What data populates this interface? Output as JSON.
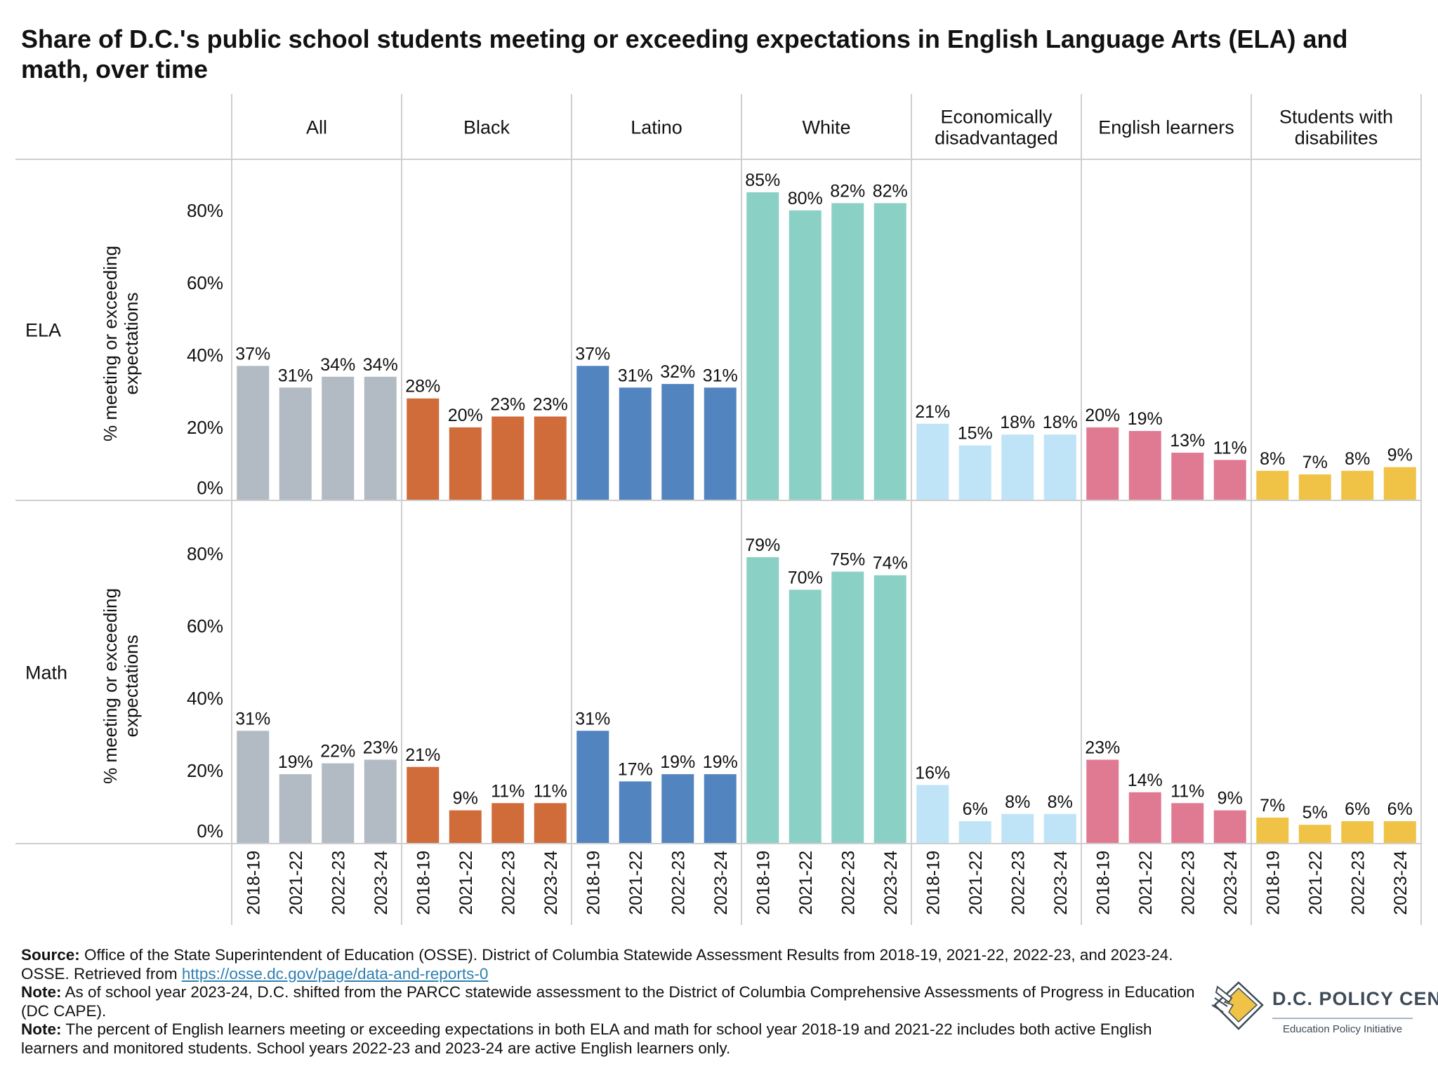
{
  "title": "Share of D.C.'s public school students meeting or exceeding expectations in English Language Arts (ELA) and math, over time",
  "chart_data": {
    "type": "bar",
    "layout": "small multiples: rows = subject, columns = student group",
    "groups": [
      "All",
      "Black",
      "Latino",
      "White",
      "Economically disadvantaged",
      "English learners",
      "Students with disabilites"
    ],
    "group_colors": [
      "#b2bac3",
      "#d06b3a",
      "#5285c0",
      "#8bd0c4",
      "#bfe3f7",
      "#e07a93",
      "#f0c346"
    ],
    "categories": [
      "2018-19",
      "2021-22",
      "2022-23",
      "2023-24"
    ],
    "ylabel": "% meeting or exceeding expectations",
    "ylim": [
      0,
      95
    ],
    "yticks": [
      0,
      20,
      40,
      60,
      80
    ],
    "ytick_labels": [
      "0%",
      "20%",
      "40%",
      "60%",
      "80%"
    ],
    "grid": false,
    "legend": "none",
    "panels": [
      {
        "subject": "ELA",
        "series": [
          {
            "name": "All",
            "values": [
              37,
              31,
              34,
              34
            ],
            "labels": [
              "37%",
              "31%",
              "34%",
              "34%"
            ]
          },
          {
            "name": "Black",
            "values": [
              28,
              20,
              23,
              23
            ],
            "labels": [
              "28%",
              "20%",
              "23%",
              "23%"
            ]
          },
          {
            "name": "Latino",
            "values": [
              37,
              31,
              32,
              31
            ],
            "labels": [
              "37%",
              "31%",
              "32%",
              "31%"
            ]
          },
          {
            "name": "White",
            "values": [
              85,
              80,
              82,
              82
            ],
            "labels": [
              "85%",
              "80%",
              "82%",
              "82%"
            ]
          },
          {
            "name": "Economically disadvantaged",
            "values": [
              21,
              15,
              18,
              18
            ],
            "labels": [
              "21%",
              "15%",
              "18%",
              "18%"
            ]
          },
          {
            "name": "English learners",
            "values": [
              20,
              19,
              13,
              11
            ],
            "labels": [
              "20%",
              "19%",
              "13%",
              "11%"
            ]
          },
          {
            "name": "Students with disabilites",
            "values": [
              8,
              7,
              8,
              9
            ],
            "labels": [
              "8%",
              "7%",
              "8%",
              "9%"
            ]
          }
        ]
      },
      {
        "subject": "Math",
        "series": [
          {
            "name": "All",
            "values": [
              31,
              19,
              22,
              23
            ],
            "labels": [
              "31%",
              "19%",
              "22%",
              "23%"
            ]
          },
          {
            "name": "Black",
            "values": [
              21,
              9,
              11,
              11
            ],
            "labels": [
              "21%",
              "9%",
              "11%",
              "11%"
            ]
          },
          {
            "name": "Latino",
            "values": [
              31,
              17,
              19,
              19
            ],
            "labels": [
              "31%",
              "17%",
              "19%",
              "19%"
            ]
          },
          {
            "name": "White",
            "values": [
              79,
              70,
              75,
              74
            ],
            "labels": [
              "79%",
              "70%",
              "75%",
              "74%"
            ]
          },
          {
            "name": "Economically disadvantaged",
            "values": [
              16,
              6,
              8,
              8
            ],
            "labels": [
              "16%",
              "6%",
              "8%",
              "8%"
            ]
          },
          {
            "name": "English learners",
            "values": [
              23,
              14,
              11,
              9
            ],
            "labels": [
              "23%",
              "14%",
              "11%",
              "9%"
            ]
          },
          {
            "name": "Students with disabilites",
            "values": [
              7,
              5,
              6,
              6
            ],
            "labels": [
              "7%",
              "5%",
              "6%",
              "6%"
            ]
          }
        ]
      }
    ]
  },
  "notes": {
    "source_label": "Source:",
    "source_text": " Office of the State Superintendent of Education (OSSE). District of Columbia Statewide Assessment Results from 2018-19, 2021-22, 2022-23, and 2023-24. OSSE. Retrieved from ",
    "source_link": "https://osse.dc.gov/page/data-and-reports-0",
    "note1_label": "Note:",
    "note1_text": " As of school year 2023-24, D.C. shifted from the PARCC statewide assessment to the District of Columbia Comprehensive Assessments of Progress in Education (DC CAPE).",
    "note2_label": "Note:",
    "note2_text": " The percent of English learners meeting or exceeding expectations in both ELA and math for school year 2018-19 and 2021-22 includes both active English learners and monitored students. School years 2022-23 and 2023-24 are active English learners only."
  },
  "logo": {
    "name": "D.C. POLICY CENTER",
    "subtitle": "Education Policy Initiative",
    "colors": {
      "map": "#f0c346",
      "mark": "#3d4a57",
      "rule": "#a7b7c6"
    }
  }
}
